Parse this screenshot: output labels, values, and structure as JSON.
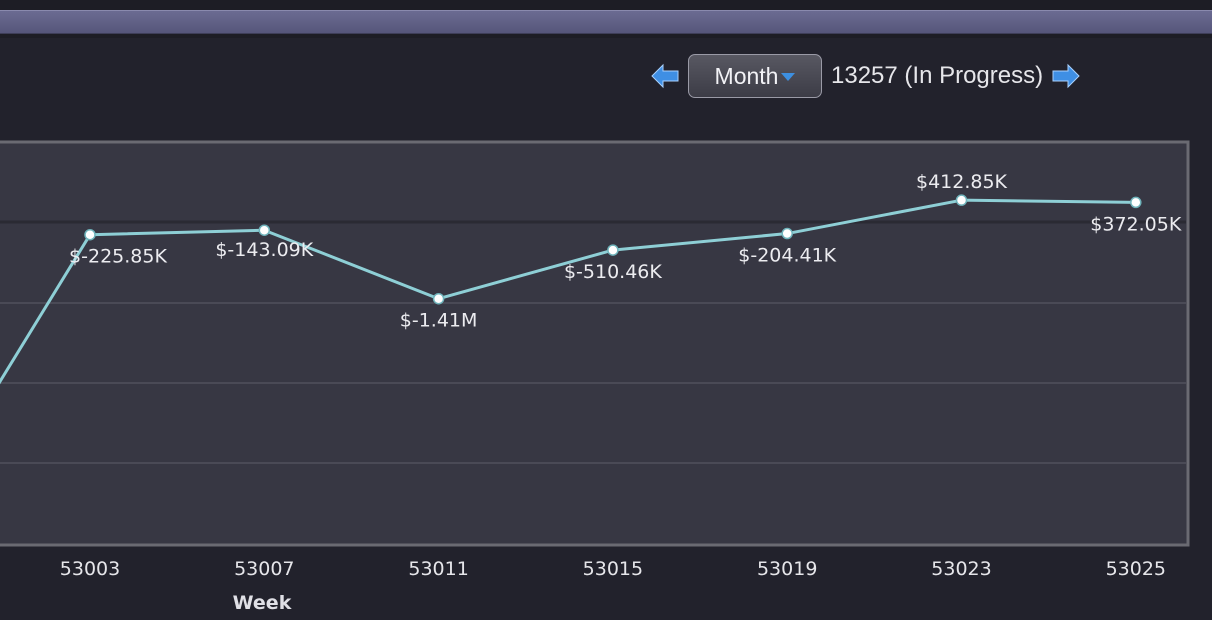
{
  "nav": {
    "prev_icon": "arrow-left-icon",
    "next_icon": "arrow-right-icon",
    "period_select": "Month",
    "period_label": "13257 (In Progress)"
  },
  "colors": {
    "line": "#8ecfd6",
    "arrow": "#3f8fe4",
    "caret": "#3d8fe0"
  },
  "chart_data": {
    "type": "line",
    "title": "",
    "xlabel": "Week",
    "ylabel": "",
    "grid": true,
    "legend": "none",
    "x_ticks": [
      "53003",
      "53007",
      "53011",
      "53015",
      "53019",
      "53023",
      "53025"
    ],
    "series": [
      {
        "points": [
          {
            "x": "53003",
            "y": -225850,
            "label": "$-225.85K"
          },
          {
            "x": "53007",
            "y": -143090,
            "label": "$-143.09K"
          },
          {
            "x": "53011",
            "y": -1410000,
            "label": "$-1.41M"
          },
          {
            "x": "53015",
            "y": -510460,
            "label": "$-510.46K"
          },
          {
            "x": "53019",
            "y": -204410,
            "label": "$-204.41K"
          },
          {
            "x": "53023",
            "y": 412850,
            "label": "$412.85K"
          },
          {
            "x": "53025",
            "y": 372050,
            "label": "$372.05K"
          }
        ]
      }
    ]
  }
}
